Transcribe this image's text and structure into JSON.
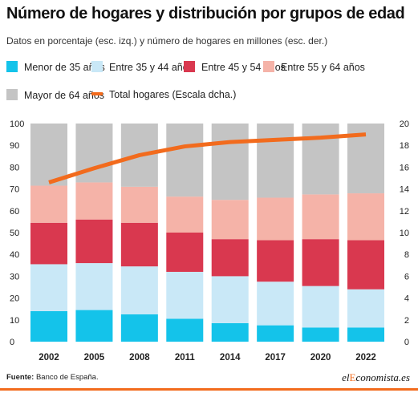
{
  "title": "Número de hogares y distribución por grupos de edad",
  "subtitle": "Datos en porcentaje (esc. izq.) y número de hogares en millones (esc. der.)",
  "source_label": "Fuente:",
  "source_text": "Banco de España.",
  "logo": {
    "prefix": "el",
    "highlight": "E",
    "rest": "conomista",
    "suffix": ".es"
  },
  "chart_data": {
    "type": "bar",
    "stacked": true,
    "categories": [
      "2002",
      "2005",
      "2008",
      "2011",
      "2014",
      "2017",
      "2020",
      "2022"
    ],
    "series": [
      {
        "name": "Menor de 35 años",
        "color": "#14c3ea",
        "values": [
          14,
          14.5,
          12.5,
          10.5,
          8.5,
          7.5,
          6.5,
          6.5
        ]
      },
      {
        "name": "Entre 35 y 44 años",
        "color": "#c9e8f7",
        "values": [
          21.5,
          21.5,
          22,
          21.5,
          21.5,
          20,
          19,
          17.5
        ]
      },
      {
        "name": "Entre 45 y 54 años",
        "color": "#d9384f",
        "values": [
          19,
          20,
          20,
          18,
          17,
          19,
          21.5,
          22.5
        ]
      },
      {
        "name": "Entre 55 y 64 años",
        "color": "#f5b3a8",
        "values": [
          17,
          17,
          16.5,
          16.5,
          18,
          19.5,
          20.5,
          21.5
        ]
      },
      {
        "name": "Mayor de 64 años",
        "color": "#c4c4c4",
        "values": [
          28.5,
          27,
          29,
          33.5,
          35,
          34,
          32.5,
          32
        ]
      }
    ],
    "line_series": {
      "name": "Total hogares (Escala dcha.)",
      "color": "#f26b1d",
      "axis": "right",
      "values": [
        14.6,
        15.9,
        17.1,
        17.9,
        18.3,
        18.5,
        18.7,
        19.0
      ]
    },
    "y_left": {
      "min": 0,
      "max": 100,
      "ticks": [
        0,
        10,
        20,
        30,
        40,
        50,
        60,
        70,
        80,
        90,
        100
      ]
    },
    "y_right": {
      "min": 0,
      "max": 20,
      "ticks": [
        0,
        2,
        4,
        6,
        8,
        10,
        12,
        14,
        16,
        18,
        20
      ]
    },
    "grid": false,
    "legend_position": "top"
  }
}
